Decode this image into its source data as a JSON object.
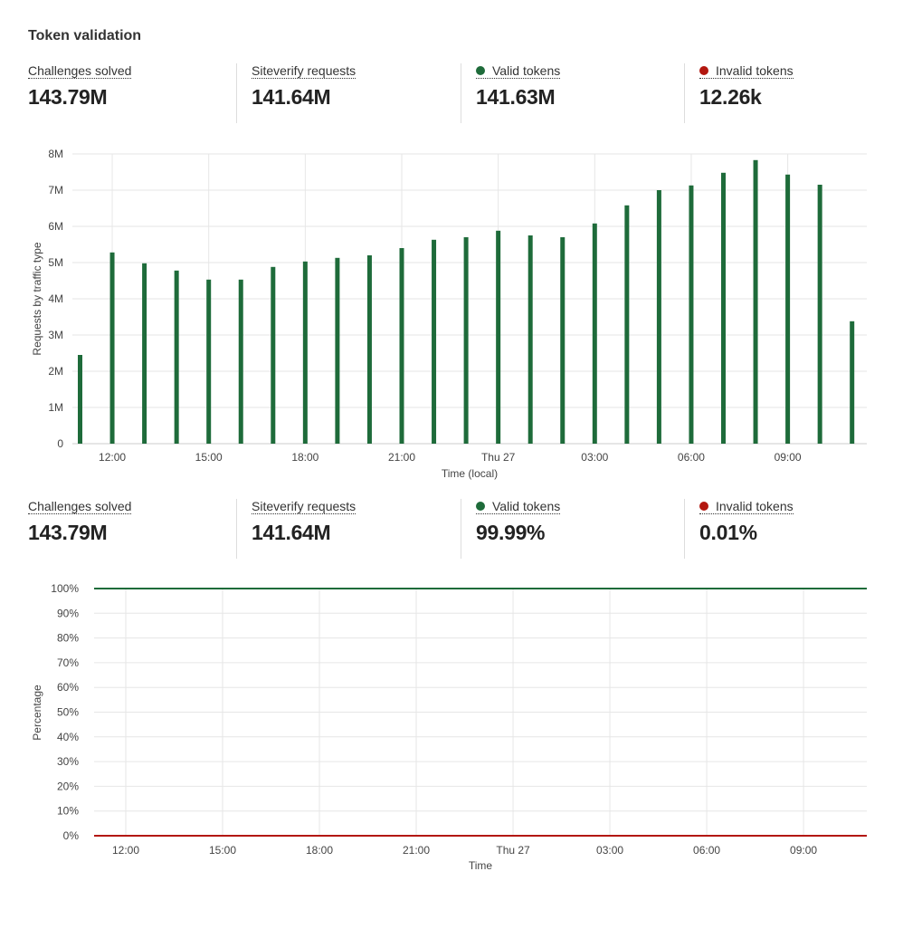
{
  "title": "Token validation",
  "stats_top": [
    {
      "label": "Challenges solved",
      "value": "143.79M"
    },
    {
      "label": "Siteverify requests",
      "value": "141.64M"
    },
    {
      "label": "Valid tokens",
      "value": "141.63M",
      "dot_color": "#1e6b3a"
    },
    {
      "label": "Invalid tokens",
      "value": "12.26k",
      "dot_color": "#b3170f"
    }
  ],
  "stats_bottom": [
    {
      "label": "Challenges solved",
      "value": "143.79M"
    },
    {
      "label": "Siteverify requests",
      "value": "141.64M"
    },
    {
      "label": "Valid tokens",
      "value": "99.99%",
      "dot_color": "#1e6b3a"
    },
    {
      "label": "Invalid tokens",
      "value": "0.01%",
      "dot_color": "#b3170f"
    }
  ],
  "chart_data": [
    {
      "type": "bar",
      "xlabel": "Time (local)",
      "ylabel": "Requests by traffic type",
      "ylim": [
        0,
        8000000
      ],
      "grid": true,
      "y_ticks": [
        "0",
        "1M",
        "2M",
        "3M",
        "4M",
        "5M",
        "6M",
        "7M",
        "8M"
      ],
      "x_ticks": [
        "12:00",
        "15:00",
        "18:00",
        "21:00",
        "Thu 27",
        "03:00",
        "06:00",
        "09:00"
      ],
      "categories": [
        "11:00",
        "12:00",
        "13:00",
        "14:00",
        "15:00",
        "16:00",
        "17:00",
        "18:00",
        "19:00",
        "20:00",
        "21:00",
        "22:00",
        "23:00",
        "Thu 27 00:00",
        "01:00",
        "02:00",
        "03:00",
        "04:00",
        "05:00",
        "06:00",
        "07:00",
        "08:00",
        "09:00",
        "10:00",
        "11:00"
      ],
      "series": [
        {
          "color": "#1e6b3a",
          "values": [
            2450000,
            5280000,
            4980000,
            4780000,
            4530000,
            4530000,
            4880000,
            5030000,
            5130000,
            5200000,
            5400000,
            5630000,
            5700000,
            5880000,
            5750000,
            5700000,
            6080000,
            6580000,
            7000000,
            7130000,
            7480000,
            7830000,
            7430000,
            7150000,
            3380000
          ]
        }
      ]
    },
    {
      "type": "line",
      "xlabel": "Time",
      "ylabel": "Percentage",
      "ylim": [
        0,
        100
      ],
      "grid": true,
      "y_ticks": [
        "0%",
        "10%",
        "20%",
        "30%",
        "40%",
        "50%",
        "60%",
        "70%",
        "80%",
        "90%",
        "100%"
      ],
      "x_ticks": [
        "12:00",
        "15:00",
        "18:00",
        "21:00",
        "Thu 27",
        "03:00",
        "06:00",
        "09:00"
      ],
      "series": [
        {
          "name": "Valid tokens",
          "color": "#1e6b3a",
          "values": [
            99.99,
            99.99
          ]
        },
        {
          "name": "Invalid tokens",
          "color": "#b3170f",
          "values": [
            0.01,
            0.01
          ]
        }
      ]
    }
  ]
}
